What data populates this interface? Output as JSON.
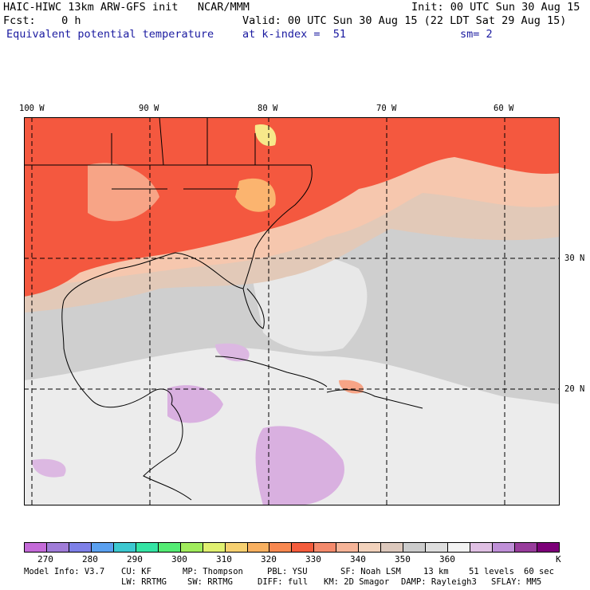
{
  "header": {
    "line1_left": "HAIC-HIWC 13km ARW-GFS init   NCAR/MMM",
    "line1_right": "Init: 00 UTC Sun 30 Aug 15",
    "line2_left": "Fcst:    0 h",
    "line2_right": "Valid: 00 UTC Sun 30 Aug 15 (22 LDT Sat 29 Aug 15)",
    "line3_left": "Equivalent potential temperature",
    "line3_mid": "at k-index =  51",
    "line3_right": "sm= 2"
  },
  "map": {
    "lon_labels": [
      "100 W",
      "90 W",
      "80 W",
      "70 W",
      "60 W"
    ],
    "lat_labels": [
      "30 N",
      "20 N"
    ],
    "colors": {
      "warm_red": "#f4583f",
      "salmon": "#f7a486",
      "orange": "#fbb46f",
      "peach": "#f6d4c0",
      "tan": "#e2c9b8",
      "gray": "#cfcfcf",
      "light_gray": "#e4e4e4",
      "white": "#f2f2f2",
      "lavender": "#d9b0e0",
      "yellow": "#f7e98a"
    }
  },
  "colorbar": {
    "colors": [
      "#c46ad8",
      "#a07cd8",
      "#7e80e8",
      "#5aa0f0",
      "#3cc8d0",
      "#34e4a4",
      "#54ec74",
      "#a0ec5c",
      "#e0f070",
      "#f6d070",
      "#f8b060",
      "#f88850",
      "#f45c3c",
      "#f48a6c",
      "#f6b498",
      "#f2d2bc",
      "#dcc8bc",
      "#cccccc",
      "#dedede",
      "#f2f2f2",
      "#e0c0e4",
      "#c090d8",
      "#983c9c",
      "#7c0078"
    ],
    "tick_labels": [
      "270",
      "280",
      "290",
      "300",
      "310",
      "320",
      "330",
      "340",
      "350",
      "360"
    ],
    "unit": "K"
  },
  "footer": {
    "row1": [
      "Model Info: V3.7",
      "CU: KF",
      "MP: Thompson",
      "PBL: YSU",
      "SF: Noah LSM",
      "13 km",
      "51 levels",
      "60 sec"
    ],
    "row2": [
      "LW: RRTMG",
      "SW: RRTMG",
      "DIFF: full",
      "KM: 2D Smagor",
      "DAMP: Rayleigh3",
      "SFLAY: MM5"
    ]
  }
}
